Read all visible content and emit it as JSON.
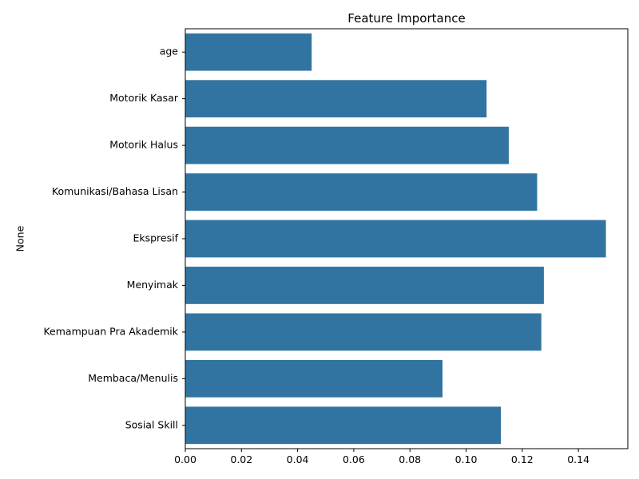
{
  "chart_data": {
    "type": "bar",
    "orientation": "horizontal",
    "title": "Feature Importance",
    "xlabel": "",
    "ylabel": "None",
    "categories": [
      "age",
      "Motorik Kasar",
      "Motorik Halus",
      "Komunikasi/Bahasa Lisan",
      "Ekspresif",
      "Menyimak",
      "Kemampuan Pra Akademik",
      "Membaca/Menulis",
      "Sosial Skill"
    ],
    "values": [
      0.045,
      0.1073,
      0.1152,
      0.1253,
      0.1498,
      0.1277,
      0.1268,
      0.0916,
      0.1124
    ],
    "xlim": [
      0,
      0.1576
    ],
    "xticks": [
      0.0,
      0.02,
      0.04,
      0.06,
      0.08,
      0.1,
      0.12,
      0.14
    ],
    "xtick_labels": [
      "0.00",
      "0.02",
      "0.04",
      "0.06",
      "0.08",
      "0.10",
      "0.12",
      "0.14"
    ],
    "grid": false,
    "bar_color": "#3274a1"
  }
}
